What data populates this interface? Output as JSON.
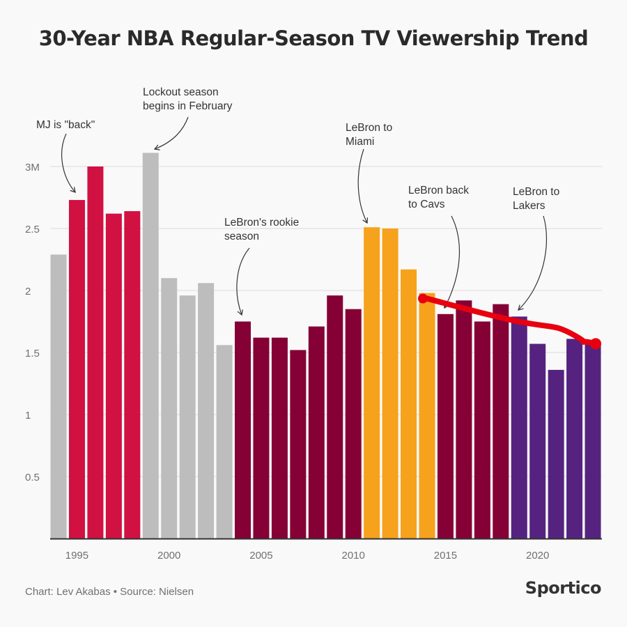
{
  "chart_data": {
    "type": "bar",
    "title": "30-Year NBA Regular-Season TV Viewership Trend",
    "xlabel": "",
    "ylabel": "",
    "ylim": [
      0,
      3.3
    ],
    "y_ticks": [
      0.5,
      1,
      1.5,
      2,
      2.5,
      3
    ],
    "y_tick_labels": [
      "0.5",
      "1",
      "1.5",
      "2",
      "2.5",
      "3M"
    ],
    "x_tick_labels": [
      "1995",
      "2000",
      "2005",
      "2010",
      "2015",
      "2020"
    ],
    "grid": "horizontal",
    "categories": [
      1994,
      1995,
      1996,
      1997,
      1998,
      1999,
      2000,
      2001,
      2002,
      2003,
      2004,
      2005,
      2006,
      2007,
      2008,
      2009,
      2010,
      2011,
      2012,
      2013,
      2014,
      2015,
      2016,
      2017,
      2018,
      2019,
      2020,
      2021,
      2022,
      2023
    ],
    "values": [
      2.29,
      2.73,
      3.0,
      2.62,
      2.64,
      3.11,
      2.1,
      1.96,
      2.06,
      1.56,
      1.75,
      1.62,
      1.62,
      1.52,
      1.71,
      1.96,
      1.85,
      2.51,
      2.5,
      2.17,
      1.98,
      1.81,
      1.92,
      1.75,
      1.89,
      1.79,
      1.57,
      1.36,
      1.61,
      1.57
    ],
    "color_groups": [
      "gray",
      "crimson",
      "crimson",
      "crimson",
      "crimson",
      "gray",
      "gray",
      "gray",
      "gray",
      "gray",
      "maroon",
      "maroon",
      "maroon",
      "maroon",
      "maroon",
      "maroon",
      "maroon",
      "orange",
      "orange",
      "orange",
      "orange",
      "maroon",
      "maroon",
      "maroon",
      "maroon",
      "purple",
      "purple",
      "purple",
      "purple",
      "purple"
    ],
    "colors": {
      "gray": "#bdbdbd",
      "crimson": "#d01142",
      "maroon": "#850035",
      "orange": "#f6a21c",
      "purple": "#55237f",
      "trend_overlay": "#e8000f"
    },
    "annotations": [
      {
        "lines": [
          "MJ is \"back\""
        ],
        "year": 1995
      },
      {
        "lines": [
          "Lockout season",
          "begins in February"
        ],
        "year": 1999
      },
      {
        "lines": [
          "LeBron's rookie",
          "season"
        ],
        "year": 2004
      },
      {
        "lines": [
          "LeBron to",
          "Miami"
        ],
        "year": 2011
      },
      {
        "lines": [
          "LeBron back",
          "to Cavs"
        ],
        "year": 2015
      },
      {
        "lines": [
          "LeBron to",
          "Lakers"
        ],
        "year": 2019
      }
    ],
    "trend_overlay": {
      "from": [
        2014,
        1.98
      ],
      "to": [
        2023,
        1.56
      ]
    }
  },
  "footer": {
    "credit": "Chart: Lev Akabas • Source: Nielsen",
    "brand": "Sportico"
  }
}
